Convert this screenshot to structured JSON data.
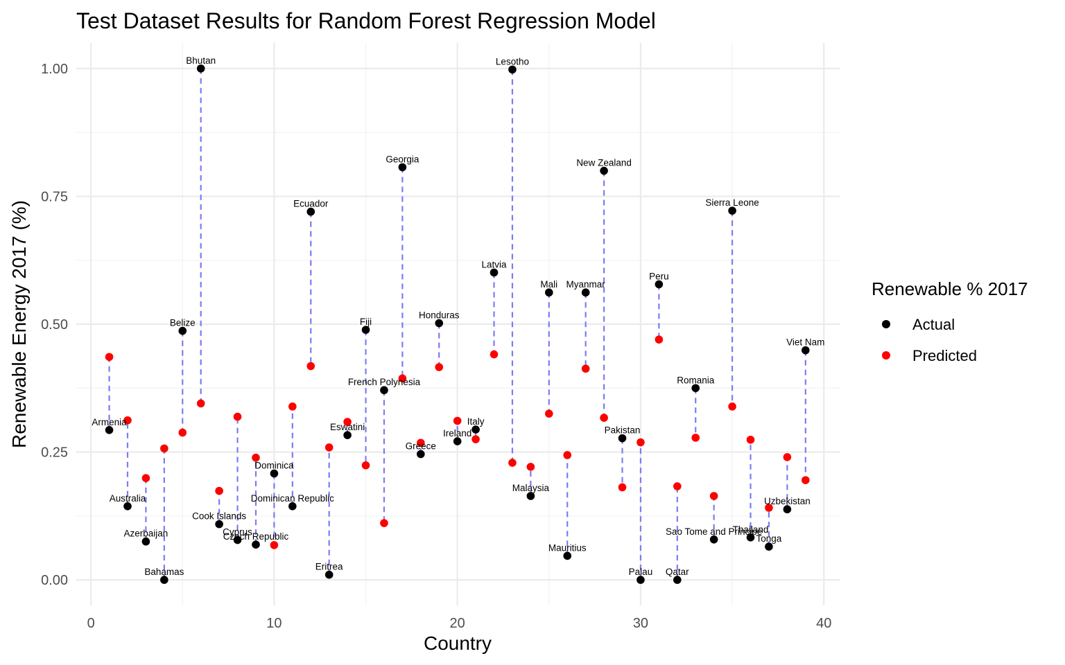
{
  "chart_data": {
    "type": "scatter",
    "title": "Test Dataset Results for Random Forest Regression Model",
    "xlabel": "Country",
    "ylabel": "Renewable Energy 2017 (%)",
    "xlim": [
      -0.8,
      40.9
    ],
    "ylim": [
      -0.05,
      1.05
    ],
    "xticks": [
      0,
      10,
      20,
      30,
      40
    ],
    "yticks": [
      0.0,
      0.25,
      0.5,
      0.75,
      1.0
    ],
    "ytick_labels": [
      "0.00",
      "0.25",
      "0.50",
      "0.75",
      "1.00"
    ],
    "grid": true,
    "legend": {
      "title": "Renewable % 2017",
      "position": "right",
      "entries": [
        {
          "label": "Actual",
          "color": "#000000"
        },
        {
          "label": "Predicted",
          "color": "#ff0000"
        }
      ]
    },
    "segment_color": "#7b7bf5",
    "countries": [
      "Armenia",
      "Australia",
      "Azerbaijan",
      "Bahamas",
      "Belize",
      "Bhutan",
      "Cook Islands",
      "Cyprus",
      "Czech Republic",
      "Dominica",
      "Dominican Republic",
      "Ecuador",
      "Eritrea",
      "Eswatini",
      "Fiji",
      "French Polynesia",
      "Georgia",
      "Greece",
      "Honduras",
      "Ireland",
      "Italy",
      "Latvia",
      "Lesotho",
      "Malaysia",
      "Mali",
      "Mauritius",
      "Myanmar",
      "New Zealand",
      "Pakistan",
      "Palau",
      "Peru",
      "Qatar",
      "Romania",
      "Sao Tome and Principe",
      "Sierra Leone",
      "Thailand",
      "Tonga",
      "Uzbekistan",
      "Viet Nam"
    ],
    "x": [
      1,
      2,
      3,
      4,
      5,
      6,
      7,
      8,
      9,
      10,
      11,
      12,
      13,
      14,
      15,
      16,
      17,
      18,
      19,
      20,
      21,
      22,
      23,
      24,
      25,
      26,
      27,
      28,
      29,
      30,
      31,
      32,
      33,
      34,
      35,
      36,
      37,
      38,
      39
    ],
    "series": [
      {
        "name": "Actual",
        "color": "#000000",
        "values": [
          0.293,
          0.144,
          0.075,
          0.0,
          0.487,
          1.0,
          0.109,
          0.078,
          0.069,
          0.208,
          0.144,
          0.72,
          0.01,
          0.283,
          0.489,
          0.371,
          0.807,
          0.246,
          0.502,
          0.271,
          0.294,
          0.601,
          0.998,
          0.164,
          0.562,
          0.047,
          0.562,
          0.8,
          0.277,
          0.0,
          0.578,
          0.0,
          0.375,
          0.079,
          0.722,
          0.083,
          0.065,
          0.138,
          0.449
        ]
      },
      {
        "name": "Predicted",
        "color": "#ff0000",
        "values": [
          0.436,
          0.312,
          0.199,
          0.257,
          0.288,
          0.345,
          0.174,
          0.319,
          0.239,
          0.068,
          0.339,
          0.418,
          0.259,
          0.309,
          0.224,
          0.111,
          0.394,
          0.268,
          0.416,
          0.311,
          0.275,
          0.441,
          0.229,
          0.221,
          0.325,
          0.244,
          0.413,
          0.317,
          0.181,
          0.269,
          0.47,
          0.183,
          0.278,
          0.164,
          0.339,
          0.274,
          0.141,
          0.24,
          0.195
        ]
      }
    ]
  }
}
